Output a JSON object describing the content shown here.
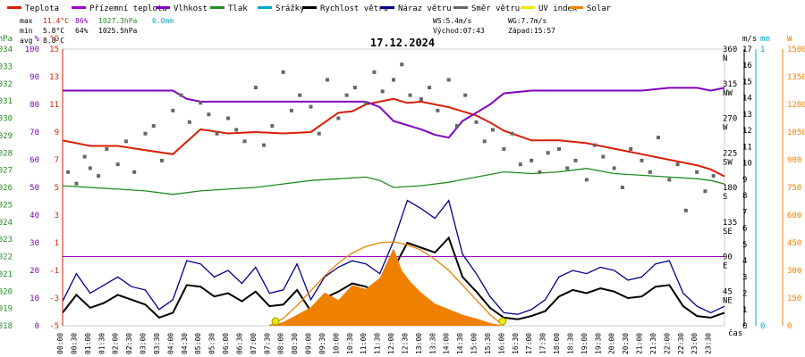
{
  "chart_data": {
    "type": "line",
    "title": "17.12.2024",
    "legend": [
      {
        "label": "Teplota",
        "color": "#d81e05"
      },
      {
        "label": "Přízemní teplota",
        "color": "#a000c8"
      },
      {
        "label": "Vlhkost",
        "color": "#8000c0"
      },
      {
        "label": "Tlak",
        "color": "#228b22"
      },
      {
        "label": "Srážky",
        "color": "#00a8c8"
      },
      {
        "label": "Rychlost větru",
        "color": "#000000"
      },
      {
        "label": "Náraz větru",
        "color": "#00008b"
      },
      {
        "label": "Směr větru",
        "color": "#666666"
      },
      {
        "label": "UV index",
        "color": "#e8e800"
      },
      {
        "label": "Solar",
        "color": "#f08000"
      }
    ],
    "stats": {
      "max_label": "max",
      "max_temp": "11.4°C",
      "max_hum": "86%",
      "max_press": "1027.3hPa",
      "max_rain": "0.0mm",
      "min_label": "min",
      "min_temp": "5.8°C",
      "min_hum": "64%",
      "min_press": "1025.5hPa",
      "avg_label": "avg",
      "avg_temp": "8.8°C"
    },
    "wind_info": {
      "ws": "WS:5.4m/s",
      "wg": "WG:7.7m/s",
      "sunrise": "Východ:07:43",
      "sunset": "Západ:15:57"
    },
    "axes": {
      "pressure": {
        "unit": "hPa",
        "color": "#228b22",
        "ticks": [
          "1034",
          "1033",
          "1032",
          "1031",
          "1030",
          "1029",
          "1028",
          "1027",
          "1026",
          "1025",
          "1024",
          "1023",
          "1022",
          "1021",
          "1020",
          "1019",
          "1018"
        ]
      },
      "humidity": {
        "unit": "%",
        "color": "#8000c0",
        "ticks": [
          "100",
          "90",
          "80",
          "70",
          "60",
          "50",
          "40",
          "30",
          "20",
          "10",
          "0"
        ]
      },
      "temperature": {
        "unit": "°C",
        "color": "#d81e05",
        "ticks": [
          "15",
          "13",
          "11",
          "9",
          "7",
          "5",
          "3",
          "1",
          "-1",
          "-3",
          "-5"
        ]
      },
      "wind_speed": {
        "unit": "m/s",
        "color": "#000000",
        "ticks": [
          "17",
          "16",
          "15",
          "14",
          "13",
          "12",
          "11",
          "10",
          "9",
          "8",
          "7",
          "6",
          "5",
          "4",
          "3",
          "2",
          "1",
          "0"
        ]
      },
      "direction": {
        "color": "#000000",
        "ticks": [
          "360\nN",
          "315\nNW",
          "270\nW",
          "225\nSW",
          "180\nS",
          "135\nSE",
          "90\nE",
          "45\nNE"
        ]
      },
      "rain": {
        "unit": "mm",
        "color": "#00a8c8",
        "ticks": [
          "1",
          "0"
        ]
      },
      "solar": {
        "unit": "W",
        "color": "#f08000",
        "ticks": [
          "1500",
          "1350",
          "1200",
          "1050",
          "900",
          "750",
          "600",
          "450",
          "300",
          "150",
          "0"
        ]
      }
    },
    "x_label": "čas",
    "x_ticks": [
      "00:00",
      "00:30",
      "01:00",
      "01:30",
      "02:00",
      "02:30",
      "03:00",
      "03:30",
      "04:00",
      "04:30",
      "05:00",
      "05:30",
      "06:00",
      "06:30",
      "07:00",
      "07:30",
      "08:00",
      "08:30",
      "09:00",
      "09:30",
      "10:00",
      "10:30",
      "11:00",
      "11:30",
      "12:00",
      "12:30",
      "13:00",
      "13:30",
      "14:00",
      "14:30",
      "15:00",
      "15:30",
      "16:00",
      "16:30",
      "17:00",
      "17:30",
      "18:00",
      "18:30",
      "19:00",
      "19:30",
      "20:00",
      "20:30",
      "21:00",
      "21:30",
      "22:00",
      "22:30",
      "23:00",
      "23:30"
    ],
    "sunrise_hour": 7.72,
    "sunset_hour": 15.95,
    "series": [
      {
        "name": "Teplota",
        "color": "#d81e05",
        "axis": "temperature",
        "x": [
          0,
          1,
          2,
          3,
          4,
          4.5,
          5,
          6,
          7,
          8,
          9,
          10,
          10.5,
          11,
          12,
          12.5,
          13,
          14,
          15,
          15.5,
          16,
          17,
          18,
          19,
          20,
          21,
          22,
          23,
          23.5,
          24
        ],
        "values": [
          8.4,
          8.0,
          8.0,
          7.7,
          7.4,
          8.3,
          9.2,
          8.9,
          9.0,
          8.9,
          9.0,
          10.4,
          10.5,
          11.0,
          11.4,
          11.1,
          11.2,
          10.8,
          10.2,
          9.7,
          9.1,
          8.4,
          8.4,
          8.2,
          7.8,
          7.4,
          7.0,
          6.6,
          6.3,
          5.8
        ]
      },
      {
        "name": "Vlhkost",
        "color": "#8000c0",
        "axis": "humidity",
        "x": [
          0,
          2,
          4,
          4.5,
          5,
          6,
          8,
          9,
          10,
          11,
          11.5,
          12,
          13,
          13.5,
          14,
          14.5,
          15,
          15.5,
          16,
          17,
          18,
          19,
          20,
          21,
          22,
          23,
          23.5,
          24
        ],
        "values": [
          85,
          85,
          85,
          82,
          81,
          81,
          81,
          81,
          81,
          81,
          79,
          74,
          71,
          69,
          68,
          74,
          77,
          80,
          84,
          85,
          85,
          85,
          85,
          85,
          86,
          86,
          85,
          86
        ]
      },
      {
        "name": "Tlak",
        "color": "#228b22",
        "axis": "pressure",
        "x": [
          0,
          2,
          3,
          4,
          5,
          6,
          7,
          8,
          9,
          10,
          11,
          11.5,
          12,
          13,
          14,
          15,
          16,
          17,
          18,
          19,
          20,
          21,
          22,
          23,
          23.5,
          24
        ],
        "values": [
          1026.1,
          1025.9,
          1025.8,
          1025.6,
          1025.8,
          1025.9,
          1026.0,
          1026.2,
          1026.4,
          1026.5,
          1026.6,
          1026.4,
          1026.0,
          1026.1,
          1026.3,
          1026.6,
          1026.9,
          1026.8,
          1026.9,
          1027.1,
          1026.8,
          1026.7,
          1026.6,
          1026.5,
          1026.4,
          1026.2
        ]
      },
      {
        "name": "Rychlost větru",
        "color": "#000000",
        "axis": "wind_speed",
        "x": [
          0,
          0.5,
          1,
          1.5,
          2,
          2.5,
          3,
          3.5,
          4,
          4.5,
          5,
          5.5,
          6,
          6.5,
          7,
          7.5,
          8,
          8.5,
          9,
          9.5,
          10,
          10.5,
          11,
          11.5,
          12,
          12.5,
          13,
          13.5,
          14,
          14.5,
          15,
          15.5,
          16,
          16.5,
          17,
          17.5,
          18,
          18.5,
          19,
          19.5,
          20,
          20.5,
          21,
          21.5,
          22,
          22.5,
          23,
          23.5,
          24
        ],
        "values": [
          0.8,
          1.9,
          1.1,
          1.4,
          1.9,
          1.6,
          1.3,
          0.5,
          0.8,
          2.5,
          2.4,
          1.8,
          2.0,
          1.5,
          2.1,
          1.2,
          1.3,
          2.2,
          0.9,
          1.7,
          2.1,
          2.6,
          2.4,
          1.9,
          3.5,
          5.1,
          4.8,
          4.5,
          5.4,
          3.0,
          2.1,
          1.1,
          0.5,
          0.4,
          0.6,
          0.9,
          1.8,
          2.2,
          2.0,
          2.3,
          2.1,
          1.7,
          1.8,
          2.4,
          2.5,
          1.2,
          0.6,
          0.5,
          0.8
        ]
      },
      {
        "name": "Náraz větru",
        "color": "#00008b",
        "axis": "wind_speed",
        "x": [
          0,
          0.5,
          1,
          1.5,
          2,
          2.5,
          3,
          3.5,
          4,
          4.5,
          5,
          5.5,
          6,
          6.5,
          7,
          7.5,
          8,
          8.5,
          9,
          9.5,
          10,
          10.5,
          11,
          11.5,
          12,
          12.5,
          13,
          13.5,
          14,
          14.5,
          15,
          15.5,
          16,
          16.5,
          17,
          17.5,
          18,
          18.5,
          19,
          19.5,
          20,
          20.5,
          21,
          21.5,
          22,
          22.5,
          23,
          23.5,
          24
        ],
        "values": [
          1.5,
          3.2,
          2.0,
          2.5,
          3.0,
          2.4,
          2.2,
          1.0,
          1.6,
          4.0,
          3.8,
          3.0,
          3.4,
          2.6,
          3.6,
          2.0,
          2.2,
          3.8,
          1.6,
          3.0,
          3.6,
          4.0,
          3.8,
          3.2,
          5.2,
          7.7,
          7.2,
          6.6,
          7.7,
          4.4,
          3.2,
          1.8,
          0.8,
          0.7,
          1.0,
          1.6,
          3.0,
          3.4,
          3.2,
          3.6,
          3.4,
          2.8,
          3.0,
          3.8,
          4.0,
          2.0,
          1.2,
          0.8,
          1.2
        ]
      },
      {
        "name": "Směr větru",
        "color": "#666666",
        "axis": "direction",
        "style": "points",
        "x": [
          0.2,
          0.5,
          0.8,
          1.0,
          1.3,
          1.6,
          2.0,
          2.3,
          2.6,
          3.0,
          3.3,
          3.6,
          4.0,
          4.3,
          4.6,
          5.0,
          5.3,
          5.6,
          6.0,
          6.3,
          6.6,
          7.0,
          7.3,
          7.6,
          8.0,
          8.3,
          8.6,
          9.0,
          9.3,
          9.6,
          10.0,
          10.3,
          10.6,
          11.0,
          11.3,
          11.6,
          12.0,
          12.3,
          12.6,
          13.0,
          13.3,
          13.6,
          14.0,
          14.3,
          14.6,
          15.0,
          15.3,
          15.6,
          16.0,
          16.3,
          16.6,
          17.0,
          17.3,
          17.6,
          18.0,
          18.3,
          18.6,
          19.0,
          19.3,
          19.6,
          20.0,
          20.3,
          20.6,
          21.0,
          21.3,
          21.6,
          22.0,
          22.3,
          22.6,
          23.0,
          23.3,
          23.6
        ],
        "values": [
          200,
          185,
          220,
          205,
          195,
          230,
          210,
          240,
          200,
          250,
          260,
          215,
          280,
          300,
          265,
          290,
          275,
          250,
          270,
          255,
          240,
          310,
          235,
          260,
          330,
          280,
          300,
          285,
          250,
          320,
          270,
          300,
          310,
          290,
          330,
          305,
          320,
          340,
          300,
          295,
          310,
          280,
          320,
          260,
          300,
          265,
          240,
          255,
          230,
          250,
          210,
          215,
          200,
          225,
          230,
          205,
          215,
          190,
          235,
          220,
          205,
          180,
          230,
          215,
          200,
          245,
          190,
          210,
          150,
          200,
          175,
          195
        ]
      },
      {
        "name": "Solar",
        "color": "#f08000",
        "axis": "solar",
        "style": "area",
        "x": [
          7.5,
          8,
          8.5,
          9,
          9.5,
          10,
          10.5,
          11,
          11.5,
          12,
          12.3,
          12.6,
          13,
          13.5,
          14,
          14.5,
          15,
          15.5,
          16
        ],
        "values": [
          0,
          20,
          60,
          100,
          180,
          140,
          220,
          200,
          260,
          420,
          300,
          240,
          180,
          120,
          90,
          60,
          40,
          15,
          0
        ]
      },
      {
        "name": "Solar max",
        "color": "#f08000",
        "axis": "solar",
        "style": "curve",
        "x": [
          7.5,
          8,
          8.5,
          9,
          9.5,
          10,
          10.5,
          11,
          11.5,
          12,
          12.5,
          13,
          13.5,
          14,
          14.5,
          15,
          15.5,
          16
        ],
        "values": [
          0,
          40,
          110,
          190,
          270,
          340,
          395,
          430,
          450,
          455,
          440,
          410,
          360,
          300,
          220,
          140,
          60,
          0
        ]
      }
    ]
  }
}
